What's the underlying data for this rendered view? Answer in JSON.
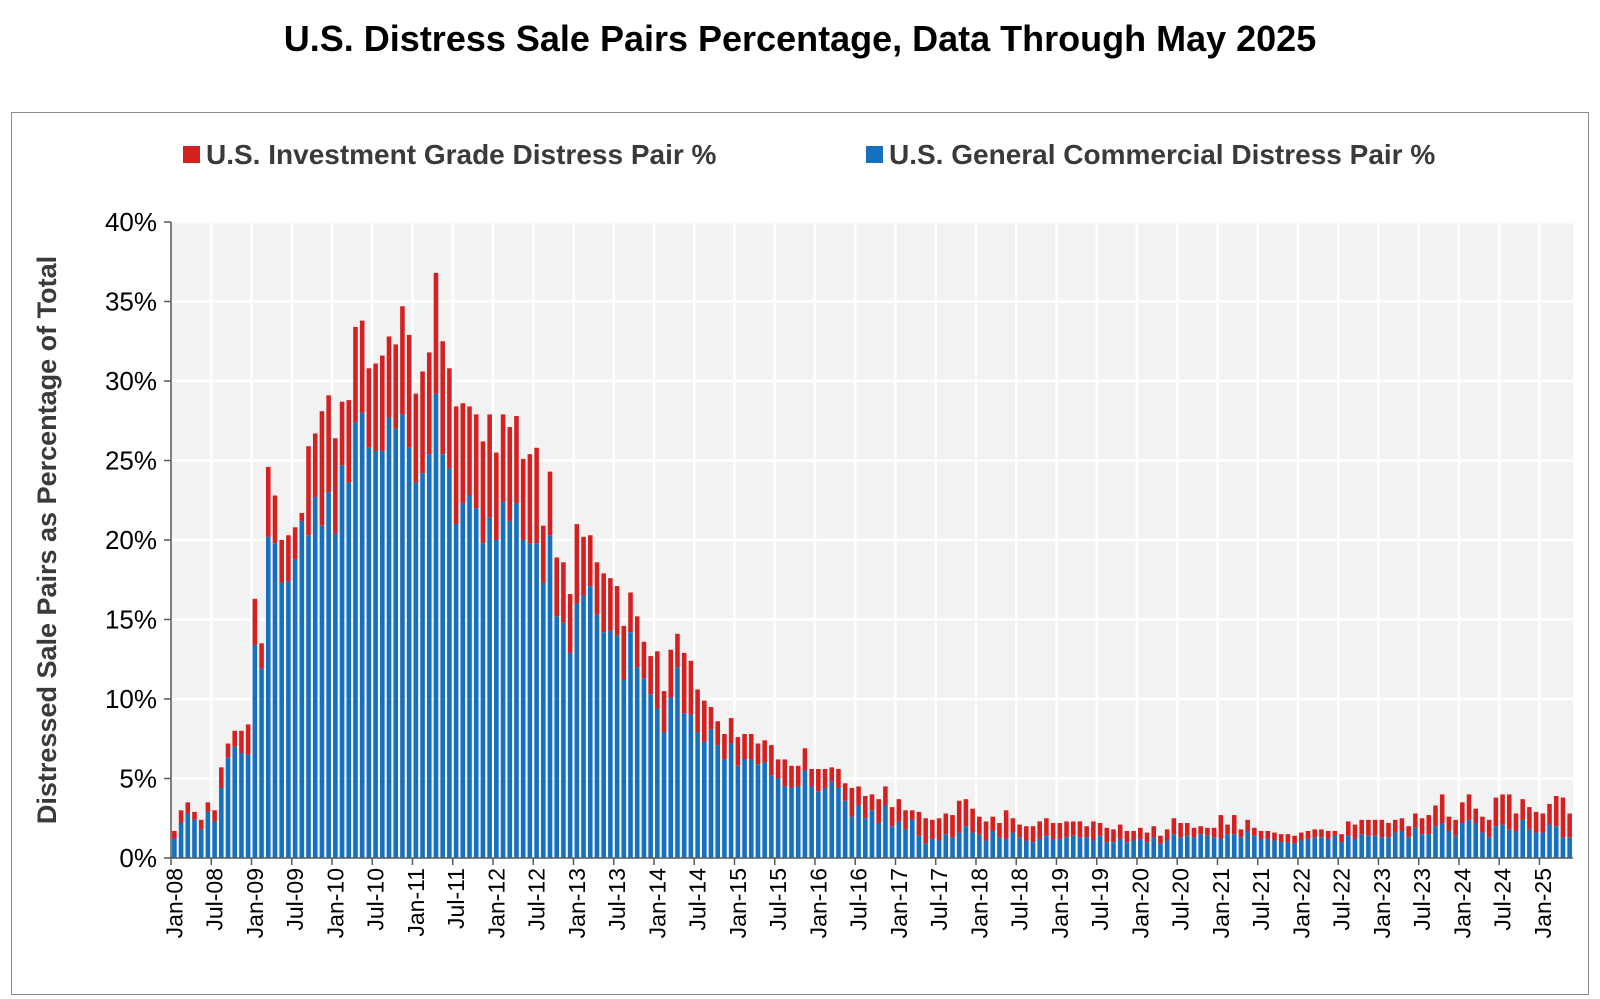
{
  "chart_data": {
    "type": "bar",
    "stacked": true,
    "title": "U.S. Distress Sale Pairs Percentage, Data Through May 2025",
    "ylabel": "Distressed Sale Pairs as Percentage of Total",
    "xlabel": "",
    "ylim": [
      0,
      40
    ],
    "y_ticks": [
      "0%",
      "5%",
      "10%",
      "15%",
      "20%",
      "25%",
      "30%",
      "35%",
      "40%"
    ],
    "x_ticks": [
      "Jan-08",
      "Jul-08",
      "Jan-09",
      "Jul-09",
      "Jan-10",
      "Jul-10",
      "Jan-11",
      "Jul-11",
      "Jan-12",
      "Jul-12",
      "Jan-13",
      "Jul-13",
      "Jan-14",
      "Jul-14",
      "Jan-15",
      "Jul-15",
      "Jan-16",
      "Jul-16",
      "Jan-17",
      "Jul-17",
      "Jan-18",
      "Jul-18",
      "Jan-19",
      "Jul-19",
      "Jan-20",
      "Jul-20",
      "Jan-21",
      "Jul-21",
      "Jan-22",
      "Jul-22",
      "Jan-23",
      "Jul-23",
      "Jan-24",
      "Jul-24",
      "Jan-25"
    ],
    "start_month": "Jan-08",
    "grid": true,
    "legend_position": "top",
    "series": [
      {
        "name": "U.S. General Commercial Distress Pair %",
        "color": "#1570c0",
        "values": [
          1.2,
          2.2,
          2.8,
          2.4,
          1.8,
          2.9,
          2.3,
          4.4,
          6.3,
          7.0,
          6.6,
          6.5,
          13.4,
          11.9,
          20.2,
          19.8,
          17.3,
          17.4,
          18.8,
          21.2,
          20.3,
          22.7,
          20.9,
          23.0,
          20.4,
          24.7,
          23.6,
          27.4,
          28.0,
          25.8,
          25.6,
          25.6,
          27.7,
          27.0,
          27.9,
          25.8,
          23.6,
          24.2,
          25.4,
          29.2,
          25.4,
          24.5,
          21.0,
          22.3,
          22.8,
          22.0,
          19.8,
          21.4,
          20.0,
          22.4,
          21.2,
          22.3,
          20.0,
          19.8,
          19.8,
          17.3,
          20.3,
          15.2,
          14.8,
          12.9,
          16.0,
          16.5,
          17.1,
          15.3,
          14.2,
          14.3,
          14.0,
          11.2,
          14.2,
          12.0,
          11.3,
          10.3,
          9.4,
          7.9,
          10.1,
          12.0,
          9.1,
          9.0,
          7.9,
          7.3,
          8.1,
          7.1,
          6.2,
          7.2,
          5.8,
          6.2,
          6.2,
          5.9,
          6.0,
          5.2,
          5.0,
          4.5,
          4.4,
          4.5,
          5.5,
          4.5,
          4.2,
          4.4,
          4.8,
          4.4,
          3.6,
          2.6,
          3.3,
          2.5,
          3.0,
          2.2,
          3.3,
          2.0,
          2.3,
          1.8,
          2.4,
          1.4,
          0.9,
          1.2,
          1.1,
          1.5,
          1.3,
          1.6,
          2.0,
          1.6,
          1.5,
          1.1,
          1.7,
          1.3,
          1.2,
          1.6,
          1.3,
          1.1,
          1.0,
          1.2,
          1.4,
          1.2,
          1.2,
          1.3,
          1.4,
          1.3,
          1.3,
          1.1,
          1.4,
          1.0,
          1.0,
          1.2,
          1.0,
          1.1,
          1.2,
          1.0,
          1.3,
          0.9,
          1.1,
          1.5,
          1.3,
          1.4,
          1.3,
          1.5,
          1.4,
          1.3,
          1.2,
          1.5,
          1.5,
          1.3,
          1.7,
          1.4,
          1.2,
          1.2,
          1.1,
          1.0,
          1.0,
          0.9,
          1.1,
          1.2,
          1.3,
          1.3,
          1.2,
          1.4,
          1.0,
          1.4,
          1.2,
          1.5,
          1.4,
          1.4,
          1.3,
          1.3,
          1.6,
          1.7,
          1.3,
          1.9,
          1.5,
          1.5,
          2.0,
          2.2,
          1.7,
          1.4,
          2.2,
          2.4,
          2.2,
          1.6,
          1.3,
          2.0,
          2.1,
          1.8,
          1.7,
          2.4,
          1.8,
          1.6,
          1.6,
          2.1,
          2.0,
          1.3,
          1.3
        ]
      },
      {
        "name": "U.S. Investment Grade Distress Pair %",
        "color": "#d42020",
        "values": [
          0.5,
          0.8,
          0.7,
          0.5,
          0.6,
          0.6,
          0.7,
          1.3,
          0.9,
          1.0,
          1.4,
          1.9,
          2.9,
          1.6,
          4.4,
          3.0,
          2.7,
          2.9,
          2.0,
          0.5,
          5.6,
          4.0,
          7.2,
          6.1,
          6.0,
          4.0,
          5.2,
          6.0,
          5.8,
          5.0,
          5.5,
          6.0,
          5.1,
          5.3,
          6.8,
          7.1,
          5.6,
          6.4,
          6.4,
          7.6,
          7.1,
          6.3,
          7.4,
          6.3,
          5.6,
          5.9,
          6.4,
          6.5,
          5.5,
          5.5,
          5.9,
          5.5,
          5.1,
          5.6,
          6.0,
          3.6,
          4.0,
          3.7,
          3.8,
          3.7,
          5.0,
          3.7,
          3.2,
          3.3,
          3.7,
          3.3,
          3.1,
          3.4,
          2.5,
          3.2,
          2.3,
          2.4,
          3.6,
          2.6,
          3.0,
          2.1,
          3.8,
          3.4,
          2.7,
          2.6,
          1.4,
          1.5,
          1.6,
          1.6,
          1.8,
          1.6,
          1.6,
          1.3,
          1.4,
          1.9,
          1.2,
          1.7,
          1.4,
          1.3,
          1.4,
          1.1,
          1.4,
          1.2,
          0.9,
          1.2,
          1.1,
          1.8,
          1.2,
          1.4,
          1.0,
          1.5,
          1.2,
          1.2,
          1.4,
          1.2,
          0.6,
          1.5,
          1.6,
          1.2,
          1.4,
          1.3,
          1.4,
          2.0,
          1.7,
          1.5,
          1.1,
          1.2,
          0.9,
          0.9,
          1.8,
          0.9,
          0.8,
          0.9,
          1.0,
          1.1,
          1.1,
          1.0,
          1.0,
          1.0,
          0.9,
          1.0,
          0.7,
          1.2,
          0.8,
          0.9,
          0.8,
          0.9,
          0.7,
          0.6,
          0.7,
          0.6,
          0.7,
          0.5,
          0.7,
          1.0,
          0.9,
          0.8,
          0.6,
          0.5,
          0.5,
          0.6,
          1.5,
          0.6,
          1.2,
          0.5,
          0.7,
          0.5,
          0.5,
          0.5,
          0.5,
          0.5,
          0.5,
          0.5,
          0.5,
          0.5,
          0.5,
          0.5,
          0.5,
          0.3,
          0.5,
          0.9,
          0.9,
          0.9,
          1.0,
          1.0,
          1.1,
          0.9,
          0.8,
          0.8,
          0.7,
          0.9,
          1.0,
          1.2,
          1.3,
          1.8,
          0.9,
          1.0,
          1.3,
          1.6,
          0.9,
          1.0,
          1.1,
          1.8,
          1.9,
          2.2,
          1.1,
          1.3,
          1.4,
          1.3,
          1.2,
          1.3,
          1.9,
          2.5,
          1.5
        ]
      }
    ]
  },
  "legend": {
    "items": [
      {
        "label": "U.S. Investment Grade Distress Pair %",
        "color": "#d42020"
      },
      {
        "label": "U.S. General Commercial Distress Pair %",
        "color": "#1570c0"
      }
    ]
  }
}
